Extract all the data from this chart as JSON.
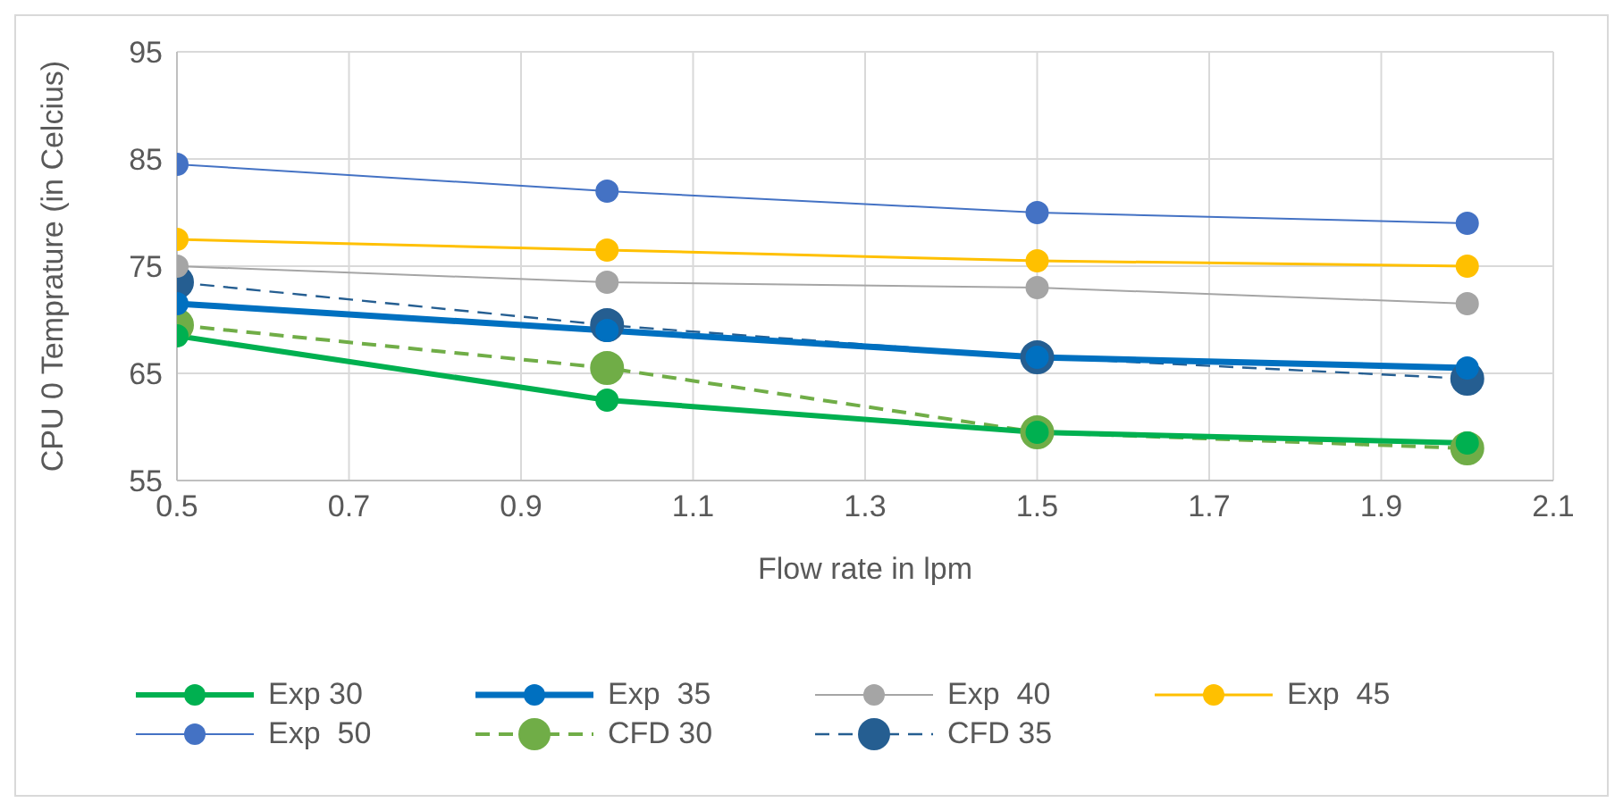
{
  "chart_data": {
    "type": "line",
    "xlabel": "Flow rate in lpm",
    "ylabel": "CPU 0 Temprature (in Celcius)",
    "x": [
      0.5,
      1.0,
      1.5,
      2.0
    ],
    "xlim": [
      0.5,
      2.1
    ],
    "xticks": [
      0.5,
      0.7,
      0.9,
      1.1,
      1.3,
      1.5,
      1.7,
      1.9,
      2.1
    ],
    "ylim": [
      55,
      95
    ],
    "yticks": [
      55,
      65,
      75,
      85,
      95
    ],
    "grid": true,
    "legend": "bottom",
    "marker": "circle",
    "series": [
      {
        "name": "Exp 30",
        "color": "#00b050",
        "values": [
          68.5,
          62.5,
          59.5,
          58.5
        ]
      },
      {
        "name": "Exp  35",
        "color": "#0070c0",
        "values": [
          71.5,
          69,
          66.5,
          65.5
        ]
      },
      {
        "name": "Exp  40",
        "color": "#a5a5a5",
        "values": [
          75,
          73.5,
          73,
          71.5
        ]
      },
      {
        "name": "Exp  45",
        "color": "#ffc000",
        "values": [
          77.5,
          76.5,
          75.5,
          75
        ]
      },
      {
        "name": "Exp  50",
        "color": "#4472c4",
        "values": [
          84.5,
          82,
          80,
          79
        ]
      },
      {
        "name": "CFD 30",
        "color": "#70ad47",
        "line_style": "dashed",
        "values": [
          69.5,
          65.5,
          59.5,
          58
        ]
      },
      {
        "name": "CFD 35",
        "color": "#255e91",
        "line_style": "dashed",
        "values": [
          73.5,
          69.5,
          66.5,
          64.5
        ]
      }
    ]
  }
}
